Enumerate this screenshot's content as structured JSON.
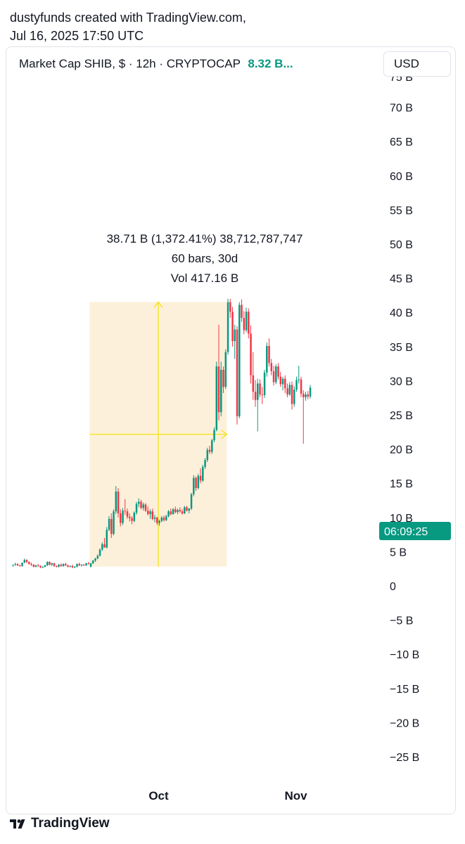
{
  "attribution": {
    "line1": "dustyfunds created with TradingView.com,",
    "line2": "Jul 16, 2025 17:50 UTC"
  },
  "legend": {
    "text": "Market Cap SHIB, $ · 12h · CRYPTOCAP",
    "price": "8.32 B..."
  },
  "currency_button": "USD",
  "timer_label": "06:09:25",
  "footer": {
    "brand": "TradingView",
    "logo_icon": "tradingview-logo-icon"
  },
  "measure": {
    "line1": "38.71 B (1,372.41%) 38,712,787,747",
    "line2": "60 bars, 30d",
    "line3": "Vol 417.16 B",
    "from_value": 2.82,
    "to_value": 41.53
  },
  "colors": {
    "up": "#089981",
    "down": "#F23645",
    "measure_fill": "#FDF0DA",
    "measure_line": "#F5E52B",
    "timer": "#089981"
  },
  "chart_data": {
    "type": "candlestick",
    "unit": "B",
    "ylim": [
      -27,
      75
    ],
    "y_ticks": [
      {
        "v": 70,
        "label": "70 B"
      },
      {
        "v": 65,
        "label": "65 B"
      },
      {
        "v": 60,
        "label": "60 B"
      },
      {
        "v": 55,
        "label": "55 B"
      },
      {
        "v": 50,
        "label": "50 B"
      },
      {
        "v": 45,
        "label": "45 B"
      },
      {
        "v": 40,
        "label": "40 B"
      },
      {
        "v": 35,
        "label": "35 B"
      },
      {
        "v": 30,
        "label": "30 B"
      },
      {
        "v": 25,
        "label": "25 B"
      },
      {
        "v": 20,
        "label": "20 B"
      },
      {
        "v": 15,
        "label": "15 B"
      },
      {
        "v": 10,
        "label": "10 B"
      },
      {
        "v": 5,
        "label": "5 B"
      },
      {
        "v": 0,
        "label": "0"
      },
      {
        "v": -5,
        "label": "−5 B"
      },
      {
        "v": -10,
        "label": "−10 B"
      },
      {
        "v": -15,
        "label": "−15 B"
      },
      {
        "v": -20,
        "label": "−20 B"
      },
      {
        "v": -25,
        "label": "−25 B"
      }
    ],
    "x_ticks": [
      {
        "bar": 58,
        "label": "Oct"
      },
      {
        "bar": 118,
        "label": "Nov"
      }
    ],
    "measure_range": {
      "start_bar": 34,
      "end_bar": 94
    },
    "candles": [
      [
        3.0,
        3.1,
        2.8,
        3.1
      ],
      [
        3.1,
        3.4,
        2.9,
        3.2
      ],
      [
        3.2,
        3.3,
        2.9,
        3.0
      ],
      [
        3.0,
        3.1,
        2.8,
        2.9
      ],
      [
        2.9,
        3.4,
        2.8,
        3.4
      ],
      [
        3.4,
        4.0,
        3.3,
        3.8
      ],
      [
        3.8,
        3.9,
        3.3,
        3.5
      ],
      [
        3.5,
        3.6,
        3.1,
        3.2
      ],
      [
        3.2,
        3.4,
        2.9,
        3.1
      ],
      [
        3.1,
        3.2,
        2.7,
        2.8
      ],
      [
        2.8,
        3.1,
        2.7,
        3.0
      ],
      [
        3.0,
        3.2,
        2.8,
        2.9
      ],
      [
        2.9,
        3.0,
        2.6,
        2.7
      ],
      [
        2.7,
        2.9,
        2.6,
        2.8
      ],
      [
        2.8,
        3.1,
        2.7,
        3.0
      ],
      [
        3.0,
        3.6,
        2.9,
        3.5
      ],
      [
        3.5,
        3.6,
        3.0,
        3.1
      ],
      [
        3.1,
        3.4,
        2.9,
        3.3
      ],
      [
        3.3,
        3.4,
        2.8,
        2.9
      ],
      [
        2.9,
        3.0,
        2.7,
        2.8
      ],
      [
        2.8,
        3.2,
        2.7,
        3.1
      ],
      [
        3.1,
        3.3,
        2.8,
        2.9
      ],
      [
        2.9,
        3.3,
        2.8,
        3.2
      ],
      [
        3.2,
        3.4,
        2.9,
        3.0
      ],
      [
        3.0,
        3.1,
        2.7,
        2.8
      ],
      [
        2.8,
        3.0,
        2.7,
        2.9
      ],
      [
        2.9,
        3.1,
        2.6,
        2.7
      ],
      [
        2.7,
        2.9,
        2.6,
        2.8
      ],
      [
        2.8,
        3.3,
        2.7,
        3.2
      ],
      [
        3.2,
        3.4,
        2.9,
        3.0
      ],
      [
        3.0,
        3.2,
        2.8,
        3.1
      ],
      [
        3.1,
        3.2,
        2.9,
        3.0
      ],
      [
        3.0,
        3.4,
        2.9,
        3.3
      ],
      [
        3.3,
        3.5,
        3.1,
        3.2
      ],
      [
        2.8,
        3.4,
        2.7,
        3.3
      ],
      [
        3.3,
        3.8,
        3.2,
        3.7
      ],
      [
        3.7,
        4.1,
        3.5,
        4.0
      ],
      [
        4.0,
        4.6,
        3.9,
        4.4
      ],
      [
        4.4,
        5.5,
        4.3,
        5.3
      ],
      [
        5.3,
        6.4,
        5.1,
        6.1
      ],
      [
        6.1,
        7.0,
        5.8,
        5.6
      ],
      [
        5.6,
        8.6,
        5.5,
        8.2
      ],
      [
        8.2,
        10.2,
        8.0,
        9.8
      ],
      [
        9.8,
        10.6,
        7.0,
        7.6
      ],
      [
        7.6,
        11.2,
        7.4,
        10.9
      ],
      [
        10.9,
        14.6,
        10.5,
        13.8
      ],
      [
        13.8,
        14.3,
        10.0,
        10.6
      ],
      [
        10.6,
        11.2,
        8.7,
        9.2
      ],
      [
        9.2,
        11.4,
        8.9,
        11.0
      ],
      [
        11.0,
        12.7,
        10.4,
        10.9
      ],
      [
        10.9,
        11.3,
        9.8,
        10.1
      ],
      [
        10.1,
        10.6,
        9.4,
        9.9
      ],
      [
        9.9,
        10.2,
        9.0,
        9.5
      ],
      [
        9.5,
        10.9,
        9.3,
        10.7
      ],
      [
        10.7,
        12.3,
        10.4,
        12.0
      ],
      [
        12.0,
        12.8,
        11.5,
        12.3
      ],
      [
        12.3,
        12.6,
        11.2,
        11.4
      ],
      [
        11.4,
        12.2,
        11.0,
        11.9
      ],
      [
        11.9,
        12.1,
        10.8,
        11.0
      ],
      [
        11.0,
        11.6,
        10.3,
        10.5
      ],
      [
        10.5,
        11.2,
        9.8,
        10.9
      ],
      [
        10.9,
        11.3,
        9.6,
        9.8
      ],
      [
        9.8,
        10.4,
        9.3,
        10.0
      ],
      [
        10.0,
        10.1,
        8.9,
        9.2
      ],
      [
        9.2,
        9.7,
        8.8,
        9.5
      ],
      [
        9.5,
        10.2,
        9.3,
        10.0
      ],
      [
        10.0,
        10.3,
        9.4,
        9.6
      ],
      [
        9.6,
        10.4,
        9.5,
        10.2
      ],
      [
        10.2,
        11.1,
        10.0,
        10.9
      ],
      [
        10.9,
        11.3,
        10.3,
        10.5
      ],
      [
        10.5,
        11.4,
        10.4,
        11.2
      ],
      [
        11.2,
        11.6,
        10.6,
        10.8
      ],
      [
        10.8,
        11.3,
        10.5,
        11.1
      ],
      [
        11.1,
        11.5,
        10.7,
        10.9
      ],
      [
        10.9,
        11.2,
        10.4,
        10.6
      ],
      [
        10.6,
        11.7,
        10.5,
        11.5
      ],
      [
        11.5,
        11.7,
        10.9,
        11.0
      ],
      [
        11.0,
        11.4,
        10.6,
        11.3
      ],
      [
        11.3,
        13.6,
        11.1,
        13.4
      ],
      [
        13.4,
        16.2,
        13.1,
        15.8
      ],
      [
        15.8,
        16.0,
        13.9,
        14.3
      ],
      [
        14.3,
        16.4,
        14.1,
        16.1
      ],
      [
        16.1,
        17.2,
        15.0,
        15.4
      ],
      [
        15.4,
        17.7,
        15.2,
        17.4
      ],
      [
        17.4,
        18.7,
        17.1,
        18.4
      ],
      [
        18.4,
        20.2,
        18.1,
        19.9
      ],
      [
        19.9,
        20.5,
        19.3,
        19.6
      ],
      [
        19.6,
        21.5,
        19.3,
        21.3
      ],
      [
        21.3,
        23.2,
        21.0,
        22.8
      ],
      [
        22.8,
        32.8,
        22.6,
        32.1
      ],
      [
        32.1,
        38.2,
        24.2,
        25.4
      ],
      [
        25.4,
        32.8,
        24.8,
        31.6
      ],
      [
        31.6,
        32.1,
        28.2,
        29.1
      ],
      [
        29.1,
        34.6,
        28.8,
        34.2
      ],
      [
        34.2,
        42.0,
        33.8,
        41.5
      ],
      [
        41.5,
        42.0,
        39.2,
        40.1
      ],
      [
        40.1,
        40.8,
        35.0,
        35.8
      ],
      [
        35.8,
        38.2,
        33.2,
        37.5
      ],
      [
        37.5,
        38.0,
        23.6,
        24.8
      ],
      [
        24.8,
        41.5,
        24.5,
        41.1
      ],
      [
        41.1,
        41.9,
        38.6,
        39.2
      ],
      [
        39.2,
        40.2,
        36.8,
        37.4
      ],
      [
        37.4,
        40.7,
        37.1,
        40.1
      ],
      [
        40.1,
        40.6,
        36.2,
        36.9
      ],
      [
        36.9,
        38.1,
        29.6,
        30.8
      ],
      [
        30.8,
        34.2,
        27.2,
        28.4
      ],
      [
        28.4,
        30.1,
        26.2,
        27.2
      ],
      [
        27.2,
        30.3,
        22.6,
        29.6
      ],
      [
        29.6,
        30.2,
        27.6,
        28.0
      ],
      [
        28.0,
        29.1,
        26.6,
        27.9
      ],
      [
        27.9,
        31.6,
        27.5,
        31.2
      ],
      [
        31.2,
        35.6,
        30.6,
        35.1
      ],
      [
        35.1,
        36.2,
        32.1,
        32.6
      ],
      [
        32.6,
        33.2,
        30.8,
        31.4
      ],
      [
        31.4,
        32.2,
        29.3,
        29.8
      ],
      [
        29.8,
        32.4,
        29.5,
        32.1
      ],
      [
        32.1,
        32.6,
        30.2,
        30.6
      ],
      [
        30.6,
        31.3,
        29.1,
        29.5
      ],
      [
        29.5,
        30.6,
        28.6,
        30.3
      ],
      [
        30.3,
        30.8,
        28.2,
        28.9
      ],
      [
        28.9,
        29.6,
        27.6,
        28.0
      ],
      [
        28.0,
        29.8,
        27.8,
        29.4
      ],
      [
        29.4,
        29.9,
        25.8,
        26.6
      ],
      [
        26.6,
        29.2,
        26.2,
        28.7
      ],
      [
        28.7,
        30.6,
        28.4,
        30.1
      ],
      [
        30.1,
        32.2,
        29.6,
        30.2
      ],
      [
        30.2,
        30.6,
        27.6,
        28.1
      ],
      [
        28.1,
        28.6,
        20.8,
        27.6
      ],
      [
        27.6,
        28.4,
        27.1,
        28.0
      ],
      [
        28.0,
        28.5,
        27.3,
        27.7
      ],
      [
        27.7,
        29.4,
        27.4,
        29.0
      ]
    ]
  }
}
